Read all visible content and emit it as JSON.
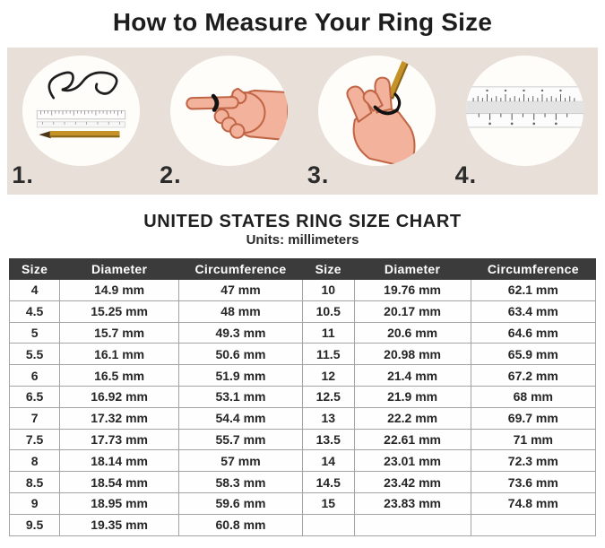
{
  "page_title": "How to Measure Your Ring Size",
  "steps": [
    {
      "number": "1.",
      "icon": "string-ruler-pencil"
    },
    {
      "number": "2.",
      "icon": "pointing-hand-with-ring"
    },
    {
      "number": "3.",
      "icon": "hand-with-string-and-pencil"
    },
    {
      "number": "4.",
      "icon": "ruler-closeup"
    }
  ],
  "chart_data": {
    "type": "table",
    "title": "UNITED STATES RING SIZE CHART",
    "subtitle": "Units: millimeters",
    "columns": [
      "Size",
      "Diameter",
      "Circumference",
      "Size",
      "Diameter",
      "Circumference"
    ],
    "rows": [
      [
        "4",
        "14.9 mm",
        "47 mm",
        "10",
        "19.76 mm",
        "62.1 mm"
      ],
      [
        "4.5",
        "15.25 mm",
        "48 mm",
        "10.5",
        "20.17 mm",
        "63.4 mm"
      ],
      [
        "5",
        "15.7 mm",
        "49.3 mm",
        "11",
        "20.6 mm",
        "64.6 mm"
      ],
      [
        "5.5",
        "16.1 mm",
        "50.6 mm",
        "11.5",
        "20.98 mm",
        "65.9 mm"
      ],
      [
        "6",
        "16.5 mm",
        "51.9 mm",
        "12",
        "21.4 mm",
        "67.2 mm"
      ],
      [
        "6.5",
        "16.92 mm",
        "53.1 mm",
        "12.5",
        "21.9 mm",
        "68 mm"
      ],
      [
        "7",
        "17.32 mm",
        "54.4 mm",
        "13",
        "22.2 mm",
        "69.7 mm"
      ],
      [
        "7.5",
        "17.73 mm",
        "55.7 mm",
        "13.5",
        "22.61 mm",
        "71 mm"
      ],
      [
        "8",
        "18.14 mm",
        "57 mm",
        "14",
        "23.01 mm",
        "72.3 mm"
      ],
      [
        "8.5",
        "18.54 mm",
        "58.3 mm",
        "14.5",
        "23.42 mm",
        "73.6 mm"
      ],
      [
        "9",
        "18.95 mm",
        "59.6 mm",
        "15",
        "23.83 mm",
        "74.8 mm"
      ],
      [
        "9.5",
        "19.35 mm",
        "60.8 mm",
        "",
        "",
        ""
      ]
    ]
  },
  "colors": {
    "band_background": "#e8e0d8",
    "circle_background": "#fffdfa",
    "table_header_background": "#3b3b3b",
    "table_header_text": "#ffffff",
    "table_border": "#a3a3a3",
    "text": "#242424",
    "skin": "#f3b29b",
    "skin_outline": "#c06647",
    "pencil": "#c49227"
  }
}
